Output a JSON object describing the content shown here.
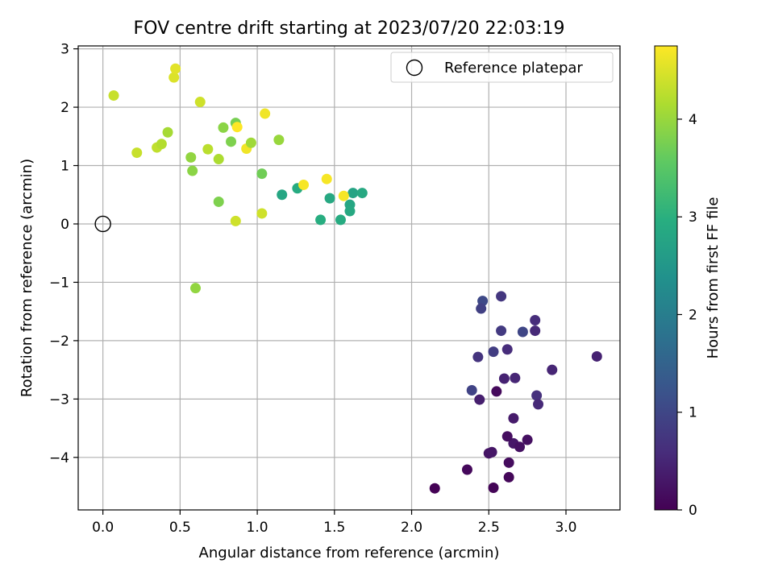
{
  "chart_data": {
    "type": "scatter",
    "title": "FOV centre drift starting at 2023/07/20 22:03:19",
    "xlabel": "Angular distance from reference (arcmin)",
    "ylabel": "Rotation from reference (arcmin)",
    "xlim": [
      -0.16,
      3.35
    ],
    "ylim": [
      -4.9,
      3.05
    ],
    "xticks": [
      0.0,
      0.5,
      1.0,
      1.5,
      2.0,
      2.5,
      3.0
    ],
    "xtick_labels": [
      "0.0",
      "0.5",
      "1.0",
      "1.5",
      "2.0",
      "2.5",
      "3.0"
    ],
    "yticks": [
      -4,
      -3,
      -2,
      -1,
      0,
      1,
      2,
      3
    ],
    "ytick_labels": [
      "−4",
      "−3",
      "−2",
      "−1",
      "0",
      "1",
      "2",
      "3"
    ],
    "grid": true,
    "legend": {
      "position": "top-right",
      "entries": [
        "Reference platepar"
      ]
    },
    "reference_point": {
      "x": 0.0,
      "y": 0.0
    },
    "colorbar": {
      "label": "Hours from first FF file",
      "range": [
        0,
        4.75
      ],
      "ticks": [
        0,
        1,
        2,
        3,
        4
      ],
      "tick_labels": [
        "0",
        "1",
        "2",
        "3",
        "4"
      ],
      "colormap": "viridis"
    },
    "points": [
      {
        "x": 2.15,
        "y": -4.53,
        "c": 0.02
      },
      {
        "x": 2.53,
        "y": -4.52,
        "c": 0.05
      },
      {
        "x": 2.36,
        "y": -4.21,
        "c": 0.1
      },
      {
        "x": 2.63,
        "y": -4.34,
        "c": 0.08
      },
      {
        "x": 2.63,
        "y": -4.09,
        "c": 0.15
      },
      {
        "x": 2.5,
        "y": -3.93,
        "c": 0.25
      },
      {
        "x": 2.52,
        "y": -3.91,
        "c": 0.28
      },
      {
        "x": 2.66,
        "y": -3.76,
        "c": 0.3
      },
      {
        "x": 2.7,
        "y": -3.82,
        "c": 0.22
      },
      {
        "x": 2.62,
        "y": -3.64,
        "c": 0.18
      },
      {
        "x": 2.75,
        "y": -3.7,
        "c": 0.2
      },
      {
        "x": 2.66,
        "y": -3.33,
        "c": 0.35
      },
      {
        "x": 2.55,
        "y": -2.87,
        "c": 0.12
      },
      {
        "x": 2.44,
        "y": -3.01,
        "c": 0.4
      },
      {
        "x": 2.6,
        "y": -2.65,
        "c": 0.45
      },
      {
        "x": 2.67,
        "y": -2.64,
        "c": 0.5
      },
      {
        "x": 2.39,
        "y": -2.85,
        "c": 0.95
      },
      {
        "x": 2.43,
        "y": -2.28,
        "c": 0.7
      },
      {
        "x": 2.53,
        "y": -2.19,
        "c": 0.85
      },
      {
        "x": 2.62,
        "y": -2.15,
        "c": 0.6
      },
      {
        "x": 2.58,
        "y": -1.83,
        "c": 0.8
      },
      {
        "x": 2.72,
        "y": -1.85,
        "c": 1.0
      },
      {
        "x": 2.8,
        "y": -1.83,
        "c": 0.55
      },
      {
        "x": 2.8,
        "y": -1.65,
        "c": 0.6
      },
      {
        "x": 2.46,
        "y": -1.32,
        "c": 1.05
      },
      {
        "x": 2.45,
        "y": -1.45,
        "c": 0.9
      },
      {
        "x": 2.58,
        "y": -1.24,
        "c": 0.75
      },
      {
        "x": 2.81,
        "y": -2.94,
        "c": 0.65
      },
      {
        "x": 2.82,
        "y": -3.09,
        "c": 0.55
      },
      {
        "x": 2.91,
        "y": -2.5,
        "c": 0.5
      },
      {
        "x": 3.2,
        "y": -2.27,
        "c": 0.45
      },
      {
        "x": 1.16,
        "y": 0.5,
        "c": 2.8
      },
      {
        "x": 1.26,
        "y": 0.61,
        "c": 2.9
      },
      {
        "x": 1.41,
        "y": 0.07,
        "c": 2.95
      },
      {
        "x": 1.47,
        "y": 0.44,
        "c": 2.85
      },
      {
        "x": 1.54,
        "y": 0.07,
        "c": 2.9
      },
      {
        "x": 1.6,
        "y": 0.33,
        "c": 2.8
      },
      {
        "x": 1.6,
        "y": 0.22,
        "c": 2.85
      },
      {
        "x": 1.62,
        "y": 0.53,
        "c": 2.75
      },
      {
        "x": 1.68,
        "y": 0.53,
        "c": 2.85
      },
      {
        "x": 0.07,
        "y": 2.2,
        "c": 4.35
      },
      {
        "x": 0.22,
        "y": 1.22,
        "c": 4.35
      },
      {
        "x": 0.35,
        "y": 1.31,
        "c": 4.3
      },
      {
        "x": 0.38,
        "y": 1.37,
        "c": 4.2
      },
      {
        "x": 0.42,
        "y": 1.57,
        "c": 4.1
      },
      {
        "x": 0.46,
        "y": 2.51,
        "c": 4.5
      },
      {
        "x": 0.47,
        "y": 2.66,
        "c": 4.55
      },
      {
        "x": 0.57,
        "y": 1.14,
        "c": 3.95
      },
      {
        "x": 0.58,
        "y": 0.91,
        "c": 3.9
      },
      {
        "x": 0.63,
        "y": 2.09,
        "c": 4.4
      },
      {
        "x": 0.68,
        "y": 1.28,
        "c": 4.25
      },
      {
        "x": 0.75,
        "y": 1.11,
        "c": 4.15
      },
      {
        "x": 0.75,
        "y": 0.38,
        "c": 3.8
      },
      {
        "x": 0.78,
        "y": 1.65,
        "c": 3.9
      },
      {
        "x": 0.83,
        "y": 1.41,
        "c": 3.8
      },
      {
        "x": 0.86,
        "y": 1.73,
        "c": 3.75
      },
      {
        "x": 0.86,
        "y": 0.05,
        "c": 4.4
      },
      {
        "x": 0.87,
        "y": 1.66,
        "c": 4.75
      },
      {
        "x": 0.93,
        "y": 1.29,
        "c": 4.65
      },
      {
        "x": 0.96,
        "y": 1.39,
        "c": 4.05
      },
      {
        "x": 1.03,
        "y": 0.86,
        "c": 3.7
      },
      {
        "x": 1.03,
        "y": 0.18,
        "c": 4.4
      },
      {
        "x": 1.05,
        "y": 1.89,
        "c": 4.65
      },
      {
        "x": 1.14,
        "y": 1.44,
        "c": 4.0
      },
      {
        "x": 1.3,
        "y": 0.67,
        "c": 4.7
      },
      {
        "x": 1.45,
        "y": 0.77,
        "c": 4.7
      },
      {
        "x": 1.56,
        "y": 0.48,
        "c": 4.7
      },
      {
        "x": 0.6,
        "y": -1.1,
        "c": 3.95
      }
    ]
  }
}
